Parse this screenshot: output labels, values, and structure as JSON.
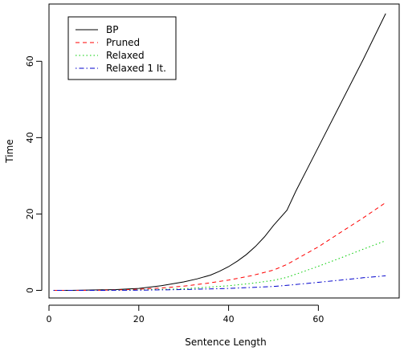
{
  "chart_data": {
    "type": "line",
    "xlabel": "Sentence Length",
    "ylabel": "Time",
    "xlim": [
      0,
      78
    ],
    "ylim": [
      -2,
      75
    ],
    "xticks": [
      0,
      20,
      40,
      60
    ],
    "yticks": [
      0,
      20,
      40,
      60
    ],
    "grid": false,
    "legend_position": "top-left",
    "series": [
      {
        "name": "BP",
        "color": "#000000",
        "dash": "solid",
        "x": [
          1,
          5,
          10,
          15,
          20,
          25,
          30,
          33,
          36,
          38,
          40,
          42,
          44,
          46,
          48,
          50,
          53,
          55,
          60,
          65,
          70,
          75
        ],
        "y": [
          0,
          0,
          0.1,
          0.2,
          0.5,
          1.2,
          2.2,
          3,
          4,
          5,
          6.2,
          7.7,
          9.4,
          11.5,
          14,
          17,
          21,
          26,
          37.5,
          49,
          60.5,
          72.5
        ]
      },
      {
        "name": "Pruned",
        "color": "#ff0000",
        "dash": "dashed",
        "x": [
          1,
          10,
          15,
          20,
          25,
          30,
          35,
          40,
          45,
          50,
          53,
          60,
          65,
          70,
          75
        ],
        "y": [
          0,
          0,
          0.1,
          0.3,
          0.6,
          1.1,
          1.8,
          2.7,
          3.8,
          5.3,
          6.8,
          11.4,
          15.2,
          19,
          23
        ]
      },
      {
        "name": "Relaxed",
        "color": "#00cc00",
        "dash": "dotted",
        "x": [
          1,
          10,
          20,
          30,
          35,
          40,
          45,
          50,
          53,
          60,
          65,
          70,
          75
        ],
        "y": [
          0,
          0,
          0.1,
          0.4,
          0.8,
          1.2,
          1.8,
          2.6,
          3.4,
          6.3,
          8.5,
          10.8,
          13
        ]
      },
      {
        "name": "Relaxed 1 It.",
        "color": "#0000cc",
        "dash": "dotdash",
        "x": [
          1,
          10,
          20,
          30,
          40,
          50,
          53,
          60,
          65,
          70,
          75
        ],
        "y": [
          0,
          0,
          0.05,
          0.2,
          0.5,
          1,
          1.3,
          2.1,
          2.7,
          3.3,
          3.8
        ]
      }
    ]
  }
}
